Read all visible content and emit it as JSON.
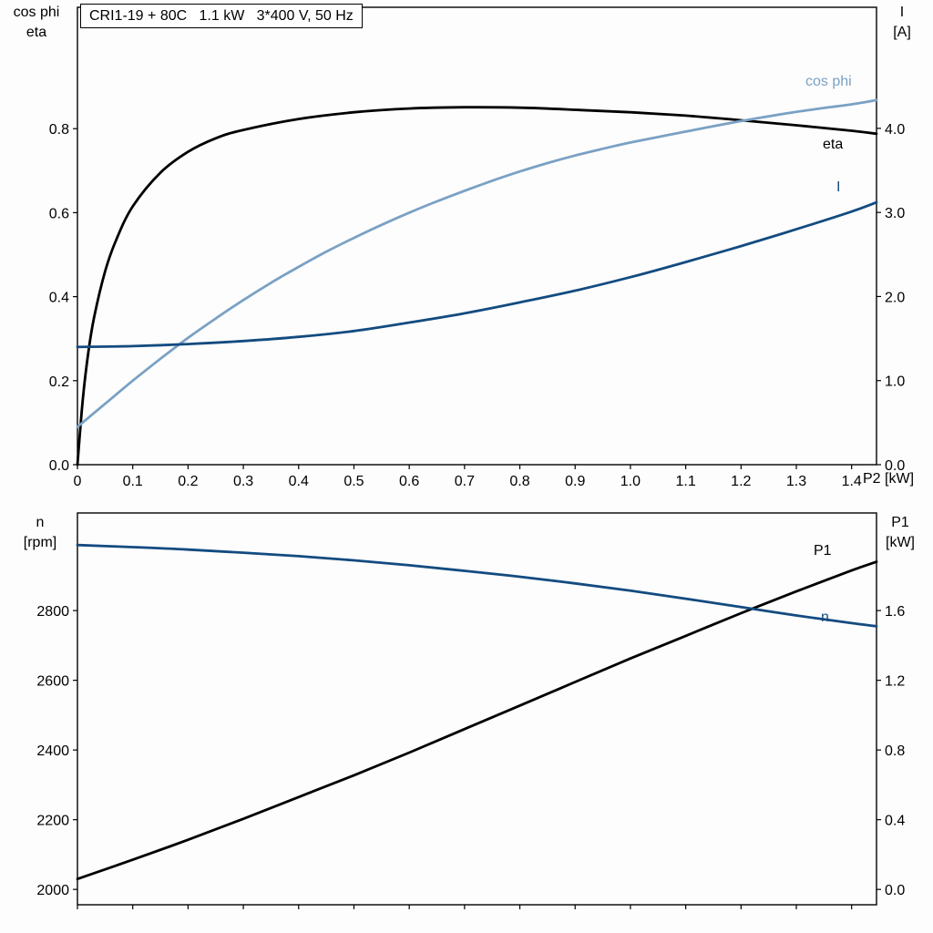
{
  "page": {
    "background": "#fdfdfd",
    "frame_color": "#000000"
  },
  "colors": {
    "black": "#000000",
    "light_blue": "#7aa1c4",
    "dark_blue": "#134b80"
  },
  "chart_data": [
    {
      "type": "line",
      "title": "CRI1-19 + 80C   1.1 kW   3*400 V, 50 Hz",
      "grid": false,
      "legend": "inline-labels",
      "x_axis": {
        "title": "P2 [kW]",
        "range": [
          0,
          1.445
        ],
        "show_labels": true,
        "ticks": [
          {
            "v": 0,
            "label": "0"
          },
          {
            "v": 0.1,
            "label": "0.1"
          },
          {
            "v": 0.2,
            "label": "0.2"
          },
          {
            "v": 0.3,
            "label": "0.3"
          },
          {
            "v": 0.4,
            "label": "0.4"
          },
          {
            "v": 0.5,
            "label": "0.5"
          },
          {
            "v": 0.6,
            "label": "0.6"
          },
          {
            "v": 0.7,
            "label": "0.7"
          },
          {
            "v": 0.8,
            "label": "0.8"
          },
          {
            "v": 0.9,
            "label": "0.9"
          },
          {
            "v": 1.0,
            "label": "1.0"
          },
          {
            "v": 1.1,
            "label": "1.1"
          },
          {
            "v": 1.2,
            "label": "1.2"
          },
          {
            "v": 1.3,
            "label": "1.3"
          },
          {
            "v": 1.4,
            "label": "1.4"
          }
        ]
      },
      "y_left": {
        "label_lines": [
          "cos phi",
          "eta"
        ],
        "range": [
          0,
          1.089
        ],
        "ticks": [
          {
            "v": 0.0,
            "label": "0.0"
          },
          {
            "v": 0.2,
            "label": "0.2"
          },
          {
            "v": 0.4,
            "label": "0.4"
          },
          {
            "v": 0.6,
            "label": "0.6"
          },
          {
            "v": 0.8,
            "label": "0.8"
          }
        ]
      },
      "y_right": {
        "label_lines": [
          "I",
          "[A]"
        ],
        "range": [
          0,
          5.44
        ],
        "ticks": [
          {
            "v": 0.0,
            "label": "0.0"
          },
          {
            "v": 1.0,
            "label": "1.0"
          },
          {
            "v": 2.0,
            "label": "2.0"
          },
          {
            "v": 3.0,
            "label": "3.0"
          },
          {
            "v": 4.0,
            "label": "4.0"
          }
        ]
      },
      "series": [
        {
          "name": "eta",
          "label": "eta",
          "axis": "left",
          "color": "#000000",
          "points": [
            [
              0,
              0
            ],
            [
              0.01,
              0.16
            ],
            [
              0.02,
              0.27
            ],
            [
              0.03,
              0.35
            ],
            [
              0.05,
              0.46
            ],
            [
              0.07,
              0.535
            ],
            [
              0.1,
              0.615
            ],
            [
              0.15,
              0.695
            ],
            [
              0.2,
              0.745
            ],
            [
              0.25,
              0.777
            ],
            [
              0.3,
              0.797
            ],
            [
              0.4,
              0.823
            ],
            [
              0.5,
              0.839
            ],
            [
              0.6,
              0.848
            ],
            [
              0.7,
              0.851
            ],
            [
              0.8,
              0.85
            ],
            [
              0.9,
              0.845
            ],
            [
              1.0,
              0.839
            ],
            [
              1.1,
              0.831
            ],
            [
              1.2,
              0.82
            ],
            [
              1.3,
              0.808
            ],
            [
              1.4,
              0.795
            ],
            [
              1.445,
              0.788
            ]
          ]
        },
        {
          "name": "cos-phi",
          "label": "cos phi",
          "axis": "left",
          "color": "#7aa1c4",
          "points": [
            [
              0,
              0.09
            ],
            [
              0.05,
              0.145
            ],
            [
              0.1,
              0.2
            ],
            [
              0.15,
              0.252
            ],
            [
              0.2,
              0.302
            ],
            [
              0.25,
              0.348
            ],
            [
              0.3,
              0.392
            ],
            [
              0.35,
              0.433
            ],
            [
              0.4,
              0.471
            ],
            [
              0.45,
              0.507
            ],
            [
              0.5,
              0.54
            ],
            [
              0.55,
              0.571
            ],
            [
              0.6,
              0.6
            ],
            [
              0.65,
              0.627
            ],
            [
              0.7,
              0.652
            ],
            [
              0.75,
              0.676
            ],
            [
              0.8,
              0.698
            ],
            [
              0.85,
              0.718
            ],
            [
              0.9,
              0.736
            ],
            [
              0.95,
              0.752
            ],
            [
              1.0,
              0.767
            ],
            [
              1.1,
              0.793
            ],
            [
              1.2,
              0.818
            ],
            [
              1.3,
              0.84
            ],
            [
              1.4,
              0.858
            ],
            [
              1.445,
              0.868
            ]
          ]
        },
        {
          "name": "I",
          "label": "I",
          "axis": "right",
          "color": "#134b80",
          "points": [
            [
              0,
              1.4
            ],
            [
              0.1,
              1.41
            ],
            [
              0.2,
              1.435
            ],
            [
              0.3,
              1.47
            ],
            [
              0.4,
              1.52
            ],
            [
              0.5,
              1.59
            ],
            [
              0.6,
              1.69
            ],
            [
              0.7,
              1.8
            ],
            [
              0.8,
              1.93
            ],
            [
              0.9,
              2.07
            ],
            [
              1.0,
              2.23
            ],
            [
              1.1,
              2.41
            ],
            [
              1.2,
              2.6
            ],
            [
              1.3,
              2.8
            ],
            [
              1.4,
              3.01
            ],
            [
              1.445,
              3.12
            ]
          ]
        }
      ]
    },
    {
      "type": "line",
      "title": "",
      "grid": false,
      "legend": "inline-labels",
      "x_axis": {
        "title": "",
        "range": [
          0,
          1.445
        ],
        "show_labels": false,
        "ticks": [
          {
            "v": 0,
            "label": ""
          },
          {
            "v": 0.1,
            "label": ""
          },
          {
            "v": 0.2,
            "label": ""
          },
          {
            "v": 0.3,
            "label": ""
          },
          {
            "v": 0.4,
            "label": ""
          },
          {
            "v": 0.5,
            "label": ""
          },
          {
            "v": 0.6,
            "label": ""
          },
          {
            "v": 0.7,
            "label": ""
          },
          {
            "v": 0.8,
            "label": ""
          },
          {
            "v": 0.9,
            "label": ""
          },
          {
            "v": 1.0,
            "label": ""
          },
          {
            "v": 1.1,
            "label": ""
          },
          {
            "v": 1.2,
            "label": ""
          },
          {
            "v": 1.3,
            "label": ""
          },
          {
            "v": 1.4,
            "label": ""
          }
        ]
      },
      "y_left": {
        "label_lines": [
          "n",
          "[rpm]"
        ],
        "range": [
          1956,
          3080
        ],
        "ticks": [
          {
            "v": 2000,
            "label": "2000"
          },
          {
            "v": 2200,
            "label": "2200"
          },
          {
            "v": 2400,
            "label": "2400"
          },
          {
            "v": 2600,
            "label": "2600"
          },
          {
            "v": 2800,
            "label": "2800"
          }
        ]
      },
      "y_right": {
        "label_lines": [
          "P1",
          "[kW]"
        ],
        "range": [
          -0.088,
          2.16
        ],
        "ticks": [
          {
            "v": 0.0,
            "label": "0.0"
          },
          {
            "v": 0.4,
            "label": "0.4"
          },
          {
            "v": 0.8,
            "label": "0.8"
          },
          {
            "v": 1.2,
            "label": "1.2"
          },
          {
            "v": 1.6,
            "label": "1.6"
          }
        ]
      },
      "series": [
        {
          "name": "P1",
          "label": "P1",
          "axis": "right",
          "color": "#000000",
          "points": [
            [
              0,
              0.06
            ],
            [
              0.1,
              0.17
            ],
            [
              0.2,
              0.285
            ],
            [
              0.3,
              0.405
            ],
            [
              0.4,
              0.53
            ],
            [
              0.5,
              0.655
            ],
            [
              0.6,
              0.785
            ],
            [
              0.7,
              0.92
            ],
            [
              0.8,
              1.055
            ],
            [
              0.9,
              1.19
            ],
            [
              1.0,
              1.325
            ],
            [
              1.1,
              1.455
            ],
            [
              1.2,
              1.585
            ],
            [
              1.3,
              1.71
            ],
            [
              1.4,
              1.83
            ],
            [
              1.445,
              1.88
            ]
          ]
        },
        {
          "name": "n",
          "label": "n",
          "axis": "left",
          "color": "#134b80",
          "points": [
            [
              0,
              2988
            ],
            [
              0.1,
              2982
            ],
            [
              0.2,
              2975
            ],
            [
              0.3,
              2966
            ],
            [
              0.4,
              2956
            ],
            [
              0.5,
              2944
            ],
            [
              0.6,
              2930
            ],
            [
              0.7,
              2914
            ],
            [
              0.8,
              2897
            ],
            [
              0.9,
              2878
            ],
            [
              1.0,
              2857
            ],
            [
              1.1,
              2834
            ],
            [
              1.2,
              2810
            ],
            [
              1.3,
              2786
            ],
            [
              1.4,
              2764
            ],
            [
              1.445,
              2755
            ]
          ]
        }
      ]
    }
  ]
}
